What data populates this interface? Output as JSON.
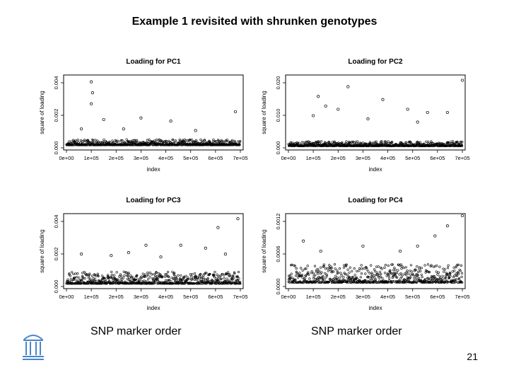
{
  "slide": {
    "title": "Example 1 revisited with shrunken genotypes",
    "caption_left": "SNP marker order",
    "caption_right": "SNP marker order",
    "page_number": "21"
  },
  "colors": {
    "points": "#000000",
    "logo": "#4a86c8"
  },
  "chart_data": [
    {
      "type": "scatter",
      "title": "Loading for PC1",
      "xlabel": "index",
      "ylabel": "square of loading",
      "xticks": [
        "0e+00",
        "1e+05",
        "2e+05",
        "3e+05",
        "4e+05",
        "5e+05",
        "6e+05",
        "7e+05"
      ],
      "yticks": [
        "0.000",
        "0.002",
        "0.004"
      ],
      "xlim": [
        0,
        700000
      ],
      "ylim": [
        0,
        0.0045
      ],
      "baseline": 0.00018,
      "noise": 0.00035,
      "outliers": [
        [
          100000,
          0.0042
        ],
        [
          105000,
          0.0035
        ],
        [
          100000,
          0.0028
        ],
        [
          150000,
          0.0018
        ],
        [
          300000,
          0.0019
        ],
        [
          420000,
          0.0017
        ],
        [
          680000,
          0.0023
        ],
        [
          60000,
          0.0012
        ],
        [
          230000,
          0.0012
        ],
        [
          520000,
          0.0011
        ]
      ]
    },
    {
      "type": "scatter",
      "title": "Loading for PC2",
      "xlabel": "index",
      "ylabel": "square of loading",
      "xticks": [
        "0e+00",
        "1e+05",
        "2e+05",
        "3e+05",
        "4e+05",
        "5e+05",
        "6e+05",
        "7e+05"
      ],
      "yticks": [
        "0.000",
        "0.010",
        "0.020"
      ],
      "xlim": [
        0,
        700000
      ],
      "ylim": [
        0,
        0.022
      ],
      "baseline": 0.0006,
      "noise": 0.0014,
      "outliers": [
        [
          700000,
          0.021
        ],
        [
          240000,
          0.019
        ],
        [
          120000,
          0.016
        ],
        [
          380000,
          0.015
        ],
        [
          150000,
          0.013
        ],
        [
          200000,
          0.012
        ],
        [
          480000,
          0.012
        ],
        [
          560000,
          0.011
        ],
        [
          640000,
          0.011
        ],
        [
          100000,
          0.01
        ],
        [
          320000,
          0.009
        ],
        [
          520000,
          0.008
        ]
      ]
    },
    {
      "type": "scatter",
      "title": "Loading for PC3",
      "xlabel": "index",
      "ylabel": "square of loading",
      "xticks": [
        "0e+00",
        "1e+05",
        "2e+05",
        "3e+05",
        "4e+05",
        "5e+05",
        "6e+05",
        "7e+05"
      ],
      "yticks": [
        "0.000",
        "0.002",
        "0.004"
      ],
      "xlim": [
        0,
        700000
      ],
      "ylim": [
        0,
        0.0048
      ],
      "baseline": 0.0002,
      "noise": 0.0008,
      "outliers": [
        [
          690000,
          0.0046
        ],
        [
          610000,
          0.004
        ],
        [
          320000,
          0.0028
        ],
        [
          460000,
          0.0028
        ],
        [
          560000,
          0.0026
        ],
        [
          60000,
          0.0022
        ],
        [
          250000,
          0.0023
        ],
        [
          640000,
          0.0022
        ],
        [
          180000,
          0.0021
        ],
        [
          380000,
          0.002
        ]
      ]
    },
    {
      "type": "scatter",
      "title": "Loading for PC4",
      "xlabel": "index",
      "ylabel": "square of loading",
      "xticks": [
        "0e+00",
        "1e+05",
        "2e+05",
        "3e+05",
        "4e+05",
        "5e+05",
        "6e+05",
        "7e+05"
      ],
      "yticks": [
        "0.0000",
        "0.0006",
        "0.0012"
      ],
      "xlim": [
        0,
        700000
      ],
      "ylim": [
        0,
        0.0014
      ],
      "baseline": 8e-05,
      "noise": 0.00036,
      "outliers": [
        [
          700000,
          0.0014
        ],
        [
          640000,
          0.0012
        ],
        [
          590000,
          0.001
        ],
        [
          60000,
          0.0009
        ],
        [
          300000,
          0.0008
        ],
        [
          520000,
          0.0008
        ],
        [
          130000,
          0.0007
        ],
        [
          450000,
          0.0007
        ]
      ]
    }
  ]
}
